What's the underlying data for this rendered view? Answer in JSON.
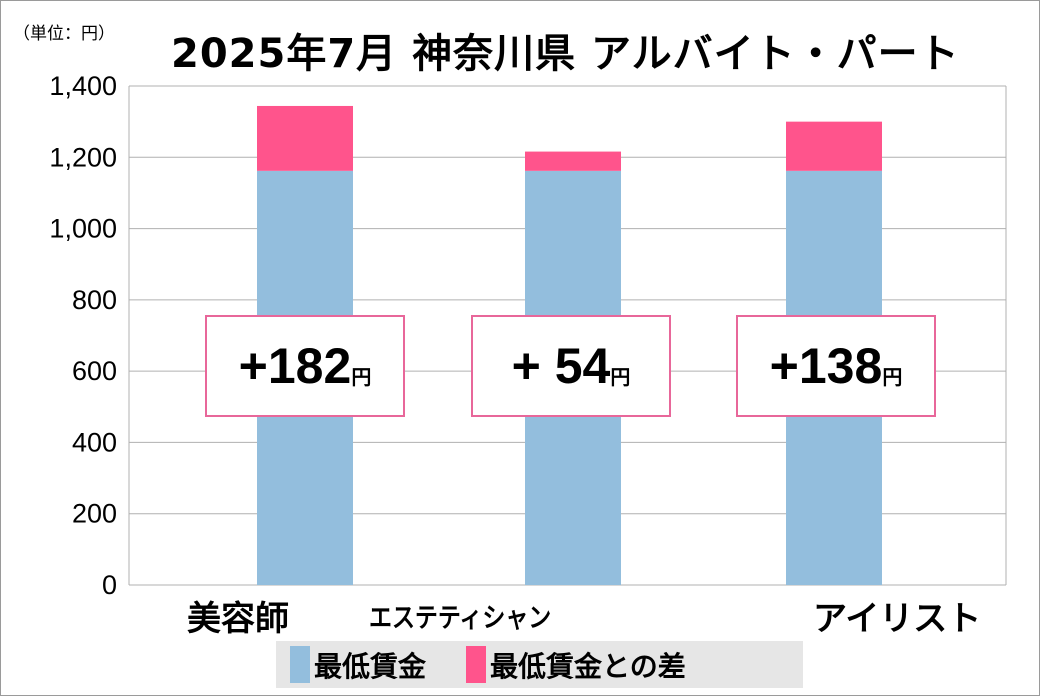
{
  "chart_data": {
    "type": "bar",
    "stacked": true,
    "title": "2025年7月 神奈川県 アルバイト・パート",
    "unit_label": "（単位：円）",
    "categories": [
      "美容師",
      "エステティシャン",
      "アイリスト"
    ],
    "series": [
      {
        "name": "最低賃金",
        "color": "#93bedd",
        "values": [
          1162,
          1162,
          1162
        ]
      },
      {
        "name": "最低賃金との差",
        "color": "#ff548c",
        "values": [
          182,
          54,
          138
        ]
      }
    ],
    "data_labels": [
      {
        "sign": "+",
        "value": "182",
        "suffix": "円"
      },
      {
        "sign": "+ ",
        "value": "54",
        "suffix": "円"
      },
      {
        "sign": "+",
        "value": "138",
        "suffix": "円"
      }
    ],
    "ylim": [
      0,
      1400
    ],
    "yticks": [
      0,
      200,
      400,
      600,
      800,
      1000,
      1200,
      1400
    ],
    "ytick_labels": [
      "0",
      "200",
      "400",
      "600",
      "800",
      "1,000",
      "1,200",
      "1,400"
    ],
    "grid": true,
    "legend_position": "bottom"
  }
}
